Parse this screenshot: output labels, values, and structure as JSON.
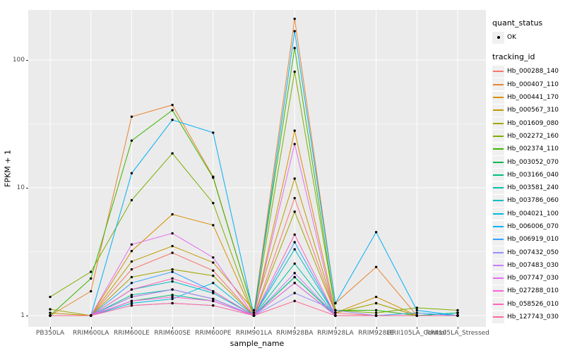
{
  "chart_data": {
    "type": "line",
    "xlabel": "sample_name",
    "ylabel": "FPKM + 1",
    "y_scale": "log10",
    "ylim": [
      1,
      252
    ],
    "y_ticks": [
      {
        "value": 1,
        "label": "1"
      },
      {
        "value": 10,
        "label": "10"
      },
      {
        "value": 100,
        "label": "100"
      }
    ],
    "y_minor_ticks": [
      3.1623,
      31.623
    ],
    "grid": true,
    "panel_bg": "#EBEBEB",
    "grid_color": "#FFFFFF",
    "point_color": "#000000",
    "legend_position": "right",
    "categories": [
      "PB350LA",
      "RRIM600LA",
      "RRIM600LE",
      "RRIM600SE",
      "RRIM600PE",
      "RRIM901LA",
      "RRIM928BA",
      "RRIM928LA",
      "RRIM928LE",
      "RRII105LA_Control",
      "RRII105LA_Stressed"
    ],
    "legend": {
      "quant_status_title": "quant_status",
      "quant_status_items": [
        {
          "label": "OK"
        }
      ],
      "tracking_id_title": "tracking_id"
    },
    "series": [
      {
        "name": "Hb_000288_140",
        "color": "#F8766D",
        "values": [
          1.0,
          1.0,
          2.3,
          3.1,
          2.25,
          1.0,
          8.3,
          1.05,
          1.0,
          1.0,
          1.0
        ]
      },
      {
        "name": "Hb_000407_110",
        "color": "#EA8331",
        "values": [
          1.0,
          1.55,
          36,
          44.5,
          12.2,
          1.05,
          210,
          1.25,
          2.4,
          1.0,
          1.0
        ]
      },
      {
        "name": "Hb_000441_170",
        "color": "#D89000",
        "values": [
          1.0,
          1.0,
          3.2,
          6.2,
          5.1,
          1.0,
          28,
          1.05,
          1.4,
          1.0,
          1.0
        ]
      },
      {
        "name": "Hb_000567_310",
        "color": "#C09B00",
        "values": [
          1.05,
          1.0,
          2.65,
          3.5,
          2.6,
          1.1,
          11.8,
          1.05,
          1.25,
          1.0,
          1.0
        ]
      },
      {
        "name": "Hb_001609_080",
        "color": "#A3A500",
        "values": [
          1.12,
          1.0,
          2.0,
          2.3,
          2.05,
          1.0,
          6.5,
          1.05,
          1.25,
          1.0,
          1.05
        ]
      },
      {
        "name": "Hb_002272_160",
        "color": "#7CAE00",
        "values": [
          1.4,
          2.2,
          8.0,
          18.6,
          7.6,
          1.0,
          81,
          1.1,
          1.05,
          1.15,
          1.1
        ]
      },
      {
        "name": "Hb_002374_110",
        "color": "#39B600",
        "values": [
          1.0,
          1.95,
          23.4,
          40.5,
          12.0,
          1.05,
          124,
          1.1,
          1.1,
          1.0,
          1.05
        ]
      },
      {
        "name": "Hb_003052_070",
        "color": "#00BB4E",
        "values": [
          1.0,
          1.0,
          1.4,
          1.6,
          1.35,
          1.0,
          2.0,
          1.0,
          1.0,
          1.0,
          1.05
        ]
      },
      {
        "name": "Hb_003166_040",
        "color": "#00BF7D",
        "values": [
          1.0,
          1.0,
          1.3,
          1.45,
          1.3,
          1.0,
          2.0,
          1.0,
          1.0,
          1.0,
          1.0
        ]
      },
      {
        "name": "Hb_003581_240",
        "color": "#00C1A3",
        "values": [
          1.0,
          1.0,
          1.45,
          1.6,
          1.35,
          1.0,
          2.55,
          1.0,
          1.0,
          1.0,
          1.05
        ]
      },
      {
        "name": "Hb_003786_060",
        "color": "#00BFC4",
        "values": [
          1.0,
          1.0,
          1.6,
          1.85,
          1.5,
          1.0,
          3.3,
          1.0,
          1.0,
          1.0,
          1.0
        ]
      },
      {
        "name": "Hb_004021_100",
        "color": "#00BAE0",
        "values": [
          1.0,
          1.0,
          1.25,
          1.35,
          1.8,
          1.0,
          1.8,
          1.0,
          1.0,
          1.0,
          1.0
        ]
      },
      {
        "name": "Hb_006006_070",
        "color": "#00B0F6",
        "values": [
          1.0,
          1.0,
          13,
          34,
          27,
          1.0,
          168,
          1.25,
          4.5,
          1.1,
          1.0
        ]
      },
      {
        "name": "Hb_006919_010",
        "color": "#35A2FF",
        "values": [
          1.0,
          1.0,
          1.8,
          2.2,
          1.55,
          1.0,
          3.75,
          1.0,
          1.0,
          1.05,
          1.0
        ]
      },
      {
        "name": "Hb_007432_050",
        "color": "#9590FF",
        "values": [
          1.0,
          1.0,
          1.2,
          1.25,
          1.2,
          1.0,
          1.5,
          1.1,
          1.0,
          1.0,
          1.0
        ]
      },
      {
        "name": "Hb_007483_030",
        "color": "#C77CFF",
        "values": [
          1.0,
          1.0,
          1.4,
          1.6,
          1.35,
          1.0,
          2.15,
          1.0,
          1.0,
          1.0,
          1.0
        ]
      },
      {
        "name": "Hb_007747_030",
        "color": "#E76BF3",
        "values": [
          1.0,
          1.0,
          3.6,
          4.4,
          2.85,
          1.0,
          22,
          1.0,
          1.0,
          1.0,
          1.0
        ]
      },
      {
        "name": "Hb_027288_010",
        "color": "#FA62DB",
        "values": [
          1.0,
          1.0,
          1.3,
          1.4,
          1.3,
          1.0,
          1.8,
          1.0,
          1.0,
          1.0,
          1.0
        ]
      },
      {
        "name": "Hb_058526_010",
        "color": "#FF62BC",
        "values": [
          1.0,
          1.0,
          1.6,
          1.95,
          1.55,
          1.0,
          4.3,
          1.0,
          1.0,
          1.0,
          1.0
        ]
      },
      {
        "name": "Hb_127743_030",
        "color": "#FF6A98",
        "values": [
          1.0,
          1.0,
          1.2,
          1.25,
          1.2,
          1.0,
          1.3,
          1.0,
          1.0,
          1.0,
          1.0
        ]
      }
    ]
  }
}
